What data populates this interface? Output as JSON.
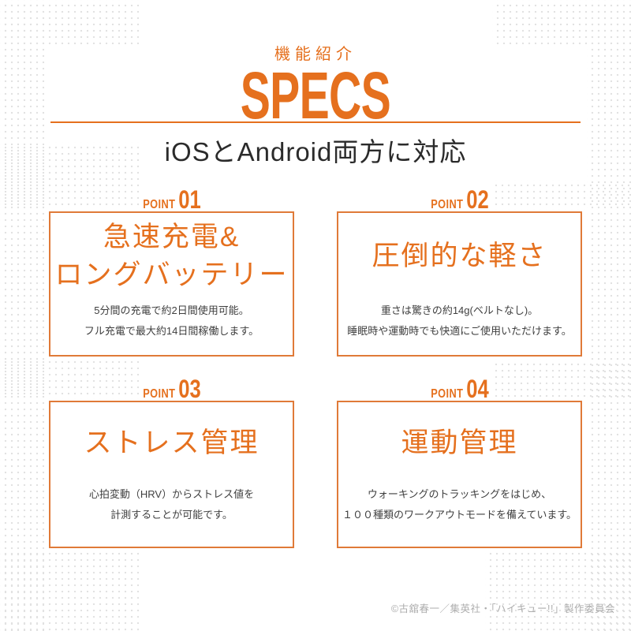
{
  "colors": {
    "accent": "#E5701E",
    "box_border": "#E07A38",
    "body_text": "#3F3F3F",
    "subtitle_text": "#2B2B2B",
    "dots": "#E2E2E2",
    "copyright_text": "#ADADAD"
  },
  "header": {
    "eyebrow": "機能紹介",
    "title": "SPECS",
    "subtitle": "iOSとAndroid両方に対応"
  },
  "points": [
    {
      "label": "POINT",
      "number": "01",
      "title_lines": [
        "急速充電&",
        "ロングバッテリー"
      ],
      "desc_lines": [
        "5分間の充電で約2日間使用可能。",
        "フル充電で最大約14日間稼働します。"
      ]
    },
    {
      "label": "POINT",
      "number": "02",
      "title_lines": [
        "圧倒的な軽さ"
      ],
      "desc_lines": [
        "重さは驚きの約14g(ベルトなし)。",
        "睡眠時や運動時でも快適にご使用いただけます。"
      ]
    },
    {
      "label": "POINT",
      "number": "03",
      "title_lines": [
        "ストレス管理"
      ],
      "desc_lines": [
        "心拍変動（HRV）からストレス値を",
        "計測することが可能です。"
      ]
    },
    {
      "label": "POINT",
      "number": "04",
      "title_lines": [
        "運動管理"
      ],
      "desc_lines": [
        "ウォーキングのトラッキングをはじめ、",
        "１００種類のワークアウトモードを備えています。"
      ]
    }
  ],
  "footer": {
    "copyright": "©古舘春一／集英社・「ハイキュー!!」製作委員会"
  }
}
